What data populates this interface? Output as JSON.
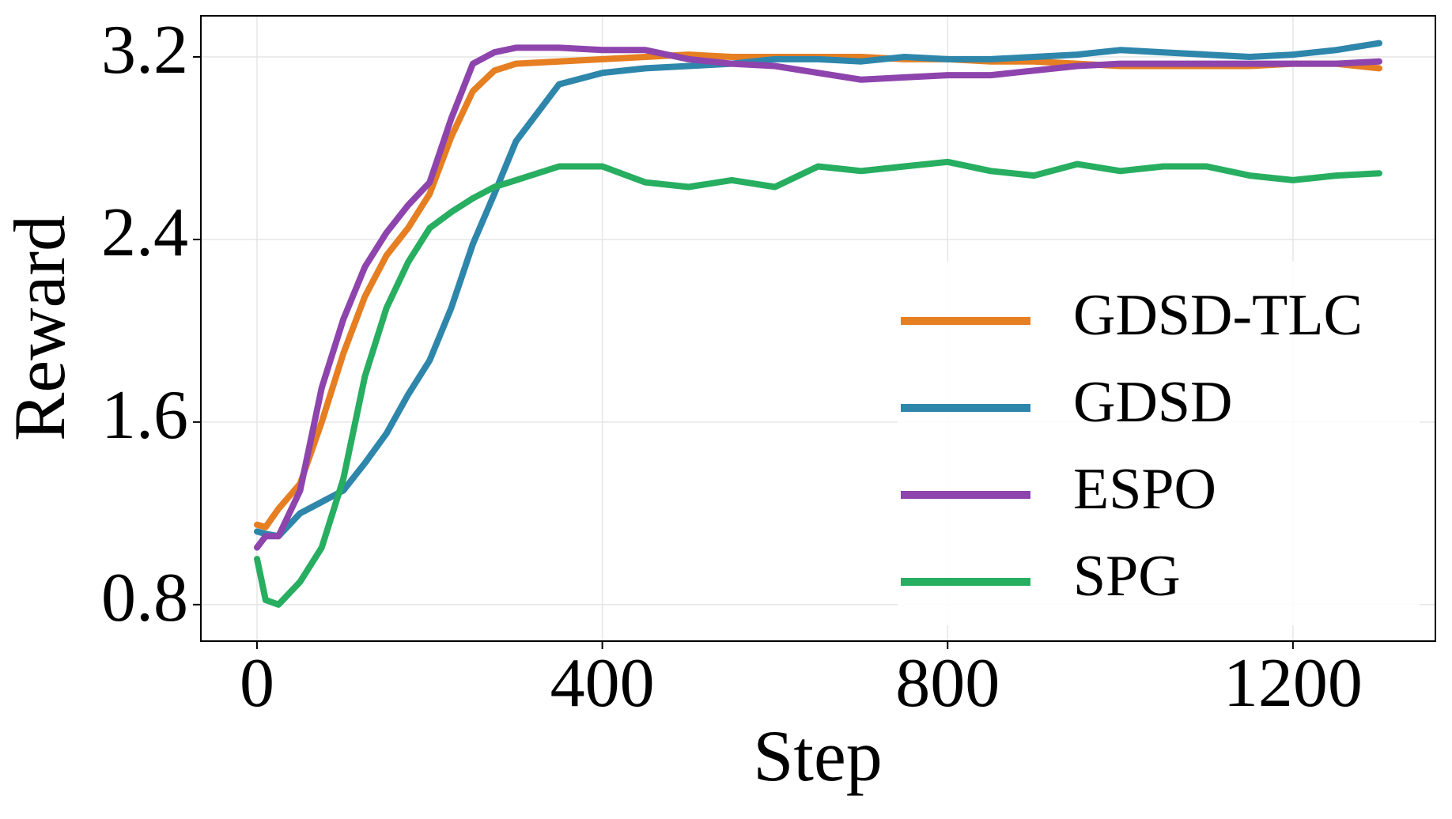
{
  "chart_data": {
    "type": "line",
    "xlabel": "Step",
    "ylabel": "Reward",
    "x": [
      0,
      10,
      25,
      50,
      75,
      100,
      125,
      150,
      175,
      200,
      225,
      250,
      275,
      300,
      350,
      400,
      450,
      500,
      550,
      600,
      650,
      700,
      750,
      800,
      850,
      900,
      950,
      1000,
      1050,
      1100,
      1150,
      1200,
      1250,
      1300
    ],
    "series": [
      {
        "name": "GDSD-TLC",
        "color": "#e67e22",
        "values": [
          1.15,
          1.14,
          1.22,
          1.33,
          1.6,
          1.9,
          2.15,
          2.33,
          2.45,
          2.6,
          2.85,
          3.05,
          3.14,
          3.17,
          3.18,
          3.19,
          3.2,
          3.21,
          3.2,
          3.2,
          3.2,
          3.2,
          3.19,
          3.19,
          3.18,
          3.18,
          3.17,
          3.16,
          3.16,
          3.16,
          3.16,
          3.17,
          3.17,
          3.15
        ]
      },
      {
        "name": "GDSD",
        "color": "#2e86ab",
        "values": [
          1.12,
          1.11,
          1.1,
          1.2,
          1.25,
          1.3,
          1.42,
          1.55,
          1.72,
          1.87,
          2.1,
          2.38,
          2.6,
          2.83,
          3.08,
          3.13,
          3.15,
          3.16,
          3.17,
          3.19,
          3.19,
          3.18,
          3.2,
          3.19,
          3.19,
          3.2,
          3.21,
          3.23,
          3.22,
          3.21,
          3.2,
          3.21,
          3.23,
          3.26
        ]
      },
      {
        "name": "ESPO",
        "color": "#8e44ad",
        "values": [
          1.05,
          1.1,
          1.1,
          1.3,
          1.75,
          2.05,
          2.28,
          2.43,
          2.55,
          2.65,
          2.93,
          3.17,
          3.22,
          3.24,
          3.24,
          3.23,
          3.23,
          3.19,
          3.17,
          3.16,
          3.13,
          3.1,
          3.11,
          3.12,
          3.12,
          3.14,
          3.16,
          3.17,
          3.17,
          3.17,
          3.17,
          3.17,
          3.17,
          3.18
        ]
      },
      {
        "name": "SPG",
        "color": "#27ae60",
        "values": [
          1.0,
          0.82,
          0.8,
          0.9,
          1.05,
          1.35,
          1.8,
          2.1,
          2.3,
          2.45,
          2.52,
          2.58,
          2.63,
          2.66,
          2.72,
          2.72,
          2.65,
          2.63,
          2.66,
          2.63,
          2.72,
          2.7,
          2.72,
          2.74,
          2.7,
          2.68,
          2.73,
          2.7,
          2.72,
          2.72,
          2.68,
          2.66,
          2.68,
          2.69
        ]
      }
    ],
    "xlim": [
      -65,
      1365
    ],
    "ylim": [
      0.64,
      3.38
    ],
    "xticks": [
      0,
      400,
      800,
      1200
    ],
    "yticks": [
      0.8,
      1.6,
      2.4,
      3.2
    ],
    "grid": true,
    "legend": "lower right"
  }
}
